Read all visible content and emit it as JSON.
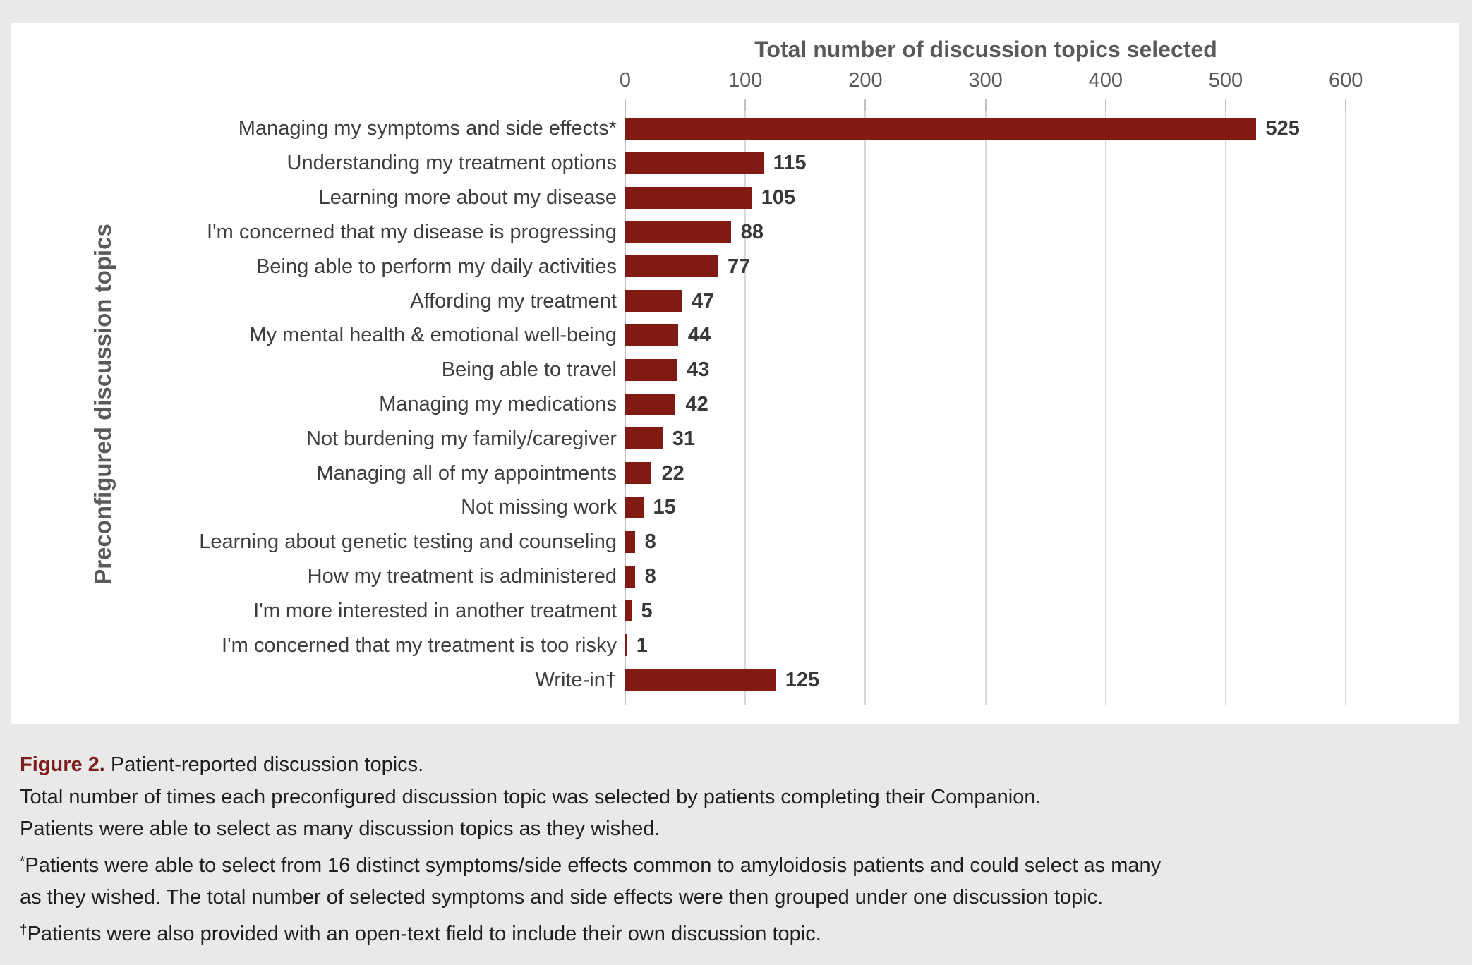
{
  "page": {
    "background_color": "#e9e9e9",
    "panel_color": "#ffffff"
  },
  "colors": {
    "bar": "#821a14",
    "axis_text": "#595959",
    "category_text": "#3d3d3d",
    "grid": "#d9d9d9",
    "figure_label_accent": "#7f1d1b"
  },
  "chart_data": {
    "type": "bar",
    "orientation": "horizontal",
    "title": "Total number of discussion topics selected",
    "xlabel": "",
    "ylabel": "Preconfigured discussion topics",
    "xlim": [
      0,
      600
    ],
    "xticks": [
      0,
      100,
      200,
      300,
      400,
      500,
      600
    ],
    "grid": true,
    "legend": false,
    "bar_color": "#821a14",
    "categories": [
      "Managing my symptoms and side effects*",
      "Understanding my treatment options",
      "Learning more about my disease",
      "I'm concerned that my disease is progressing",
      "Being able to perform my daily activities",
      "Affording my treatment",
      "My mental health & emotional well-being",
      "Being able to travel",
      "Managing my medications",
      "Not burdening my family/caregiver",
      "Managing all of my appointments",
      "Not missing work",
      "Learning about genetic testing and counseling",
      "How my treatment is administered",
      "I'm more interested in another treatment",
      "I'm concerned that my treatment is too risky",
      "Write-in†"
    ],
    "values": [
      525,
      115,
      105,
      88,
      77,
      47,
      44,
      43,
      42,
      31,
      22,
      15,
      8,
      8,
      5,
      1,
      125
    ]
  },
  "caption": {
    "lines": [
      {
        "segments": [
          {
            "text": "Figure 2.",
            "style": "figure-label"
          },
          {
            "text": " Patient-reported discussion topics.",
            "style": "normal"
          }
        ]
      },
      {
        "segments": [
          {
            "text": "Total number of times each preconfigured discussion topic was selected by patients completing their Companion.",
            "style": "normal"
          }
        ]
      },
      {
        "segments": [
          {
            "text": "Patients were able to select as many discussion topics as they wished.",
            "style": "normal"
          }
        ]
      },
      {
        "segments": [
          {
            "text": "*",
            "style": "superscript"
          },
          {
            "text": "Patients were able to select from 16 distinct symptoms/side effects common to amyloidosis patients and could select as many",
            "style": "normal"
          }
        ]
      },
      {
        "segments": [
          {
            "text": "as they wished. The total number of selected symptoms and side effects were then grouped under one discussion topic.",
            "style": "normal"
          }
        ]
      },
      {
        "segments": [
          {
            "text": "†",
            "style": "superscript"
          },
          {
            "text": "Patients were also provided with an open-text field to include their own discussion topic.",
            "style": "normal"
          }
        ]
      }
    ]
  }
}
